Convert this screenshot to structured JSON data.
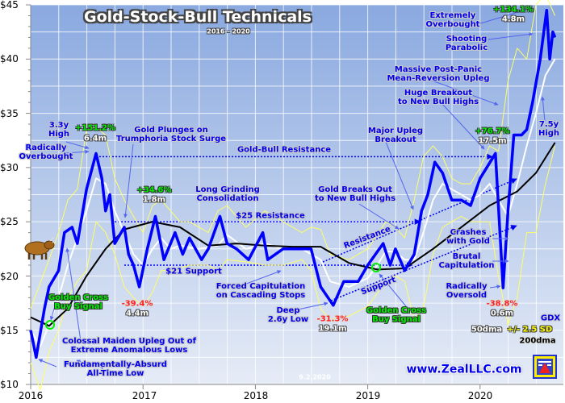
{
  "chart_data": {
    "type": "line",
    "title": "Gold-Stock-Bull Technicals",
    "subtitle": "2016 - 2020",
    "xlabel": "",
    "ylabel": "",
    "ylim": [
      10,
      45
    ],
    "xlim": [
      "2016-01-01",
      "2020-09-02"
    ],
    "y_ticks": [
      "$10",
      "$15",
      "$20",
      "$25",
      "$30",
      "$35",
      "$40",
      "$45"
    ],
    "x_ticks": [
      "2016",
      "2017",
      "2018",
      "2019",
      "2020"
    ],
    "grid": true,
    "legend": "bottom-right",
    "legend_entries": {
      "gdx": "GDX",
      "dma50": "50dma",
      "bands": "+/- 2.5 SD",
      "dma200": "200dma"
    },
    "colors": {
      "gdx": "#0000ff",
      "dma50": "#ffffff",
      "dma200": "#000000",
      "bands": "#ffff66",
      "resistance": "#0000ff",
      "golden_cross": "#00ee00"
    },
    "series": [
      {
        "name": "GDX",
        "points": [
          [
            "2016-01-01",
            15.0
          ],
          [
            "2016-01-19",
            12.5
          ],
          [
            "2016-02-15",
            17.0
          ],
          [
            "2016-03-01",
            19.0
          ],
          [
            "2016-04-01",
            20.5
          ],
          [
            "2016-04-20",
            24.0
          ],
          [
            "2016-05-15",
            24.5
          ],
          [
            "2016-06-01",
            23.0
          ],
          [
            "2016-07-01",
            28.0
          ],
          [
            "2016-08-01",
            31.3
          ],
          [
            "2016-08-20",
            29.0
          ],
          [
            "2016-09-01",
            26.0
          ],
          [
            "2016-09-15",
            27.5
          ],
          [
            "2016-10-01",
            23.0
          ],
          [
            "2016-11-01",
            24.5
          ],
          [
            "2016-11-15",
            22.0
          ],
          [
            "2016-12-01",
            21.0
          ],
          [
            "2016-12-20",
            19.0
          ],
          [
            "2017-01-15",
            22.5
          ],
          [
            "2017-02-10",
            25.5
          ],
          [
            "2017-03-10",
            21.5
          ],
          [
            "2017-04-15",
            24.0
          ],
          [
            "2017-05-10",
            22.0
          ],
          [
            "2017-06-01",
            23.5
          ],
          [
            "2017-07-10",
            21.5
          ],
          [
            "2017-08-01",
            22.5
          ],
          [
            "2017-09-08",
            25.5
          ],
          [
            "2017-10-01",
            23.0
          ],
          [
            "2017-11-01",
            22.5
          ],
          [
            "2017-12-10",
            21.5
          ],
          [
            "2018-01-25",
            24.0
          ],
          [
            "2018-02-10",
            21.5
          ],
          [
            "2018-04-01",
            22.5
          ],
          [
            "2018-06-01",
            22.5
          ],
          [
            "2018-07-01",
            22.5
          ],
          [
            "2018-08-01",
            19.0
          ],
          [
            "2018-09-11",
            17.3
          ],
          [
            "2018-10-15",
            19.5
          ],
          [
            "2018-12-01",
            19.5
          ],
          [
            "2019-01-01",
            21.0
          ],
          [
            "2019-02-20",
            23.0
          ],
          [
            "2019-03-15",
            21.0
          ],
          [
            "2019-04-01",
            22.5
          ],
          [
            "2019-05-01",
            20.5
          ],
          [
            "2019-06-01",
            22.0
          ],
          [
            "2019-06-25",
            26.0
          ],
          [
            "2019-07-15",
            27.5
          ],
          [
            "2019-08-07",
            30.5
          ],
          [
            "2019-09-01",
            29.5
          ],
          [
            "2019-10-01",
            27.0
          ],
          [
            "2019-11-01",
            27.0
          ],
          [
            "2019-12-01",
            26.5
          ],
          [
            "2020-01-01",
            29.0
          ],
          [
            "2020-02-20",
            31.3
          ],
          [
            "2020-03-16",
            18.9
          ],
          [
            "2020-04-01",
            26.0
          ],
          [
            "2020-04-20",
            33.0
          ],
          [
            "2020-05-15",
            33.0
          ],
          [
            "2020-06-01",
            33.5
          ],
          [
            "2020-06-20",
            36.0
          ],
          [
            "2020-07-15",
            40.0
          ],
          [
            "2020-08-05",
            44.5
          ],
          [
            "2020-08-15",
            40.0
          ],
          [
            "2020-08-25",
            42.5
          ],
          [
            "2020-09-01",
            42.0
          ]
        ]
      },
      {
        "name": "50dma",
        "points": [
          [
            "2016-01-01",
            15
          ],
          [
            "2016-02-01",
            13.5
          ],
          [
            "2016-03-01",
            15.5
          ],
          [
            "2016-04-01",
            18
          ],
          [
            "2016-05-01",
            21
          ],
          [
            "2016-06-01",
            23.5
          ],
          [
            "2016-07-01",
            26
          ],
          [
            "2016-08-01",
            29
          ],
          [
            "2016-09-01",
            28.5
          ],
          [
            "2016-10-01",
            26
          ],
          [
            "2016-11-01",
            24
          ],
          [
            "2016-12-01",
            22
          ],
          [
            "2017-01-01",
            21
          ],
          [
            "2017-02-01",
            22.5
          ],
          [
            "2017-03-01",
            23.5
          ],
          [
            "2017-04-01",
            22.5
          ],
          [
            "2017-05-01",
            22.8
          ],
          [
            "2017-07-01",
            22.5
          ],
          [
            "2017-09-01",
            22.8
          ],
          [
            "2017-10-01",
            23.8
          ],
          [
            "2017-12-01",
            22.5
          ],
          [
            "2018-02-01",
            23
          ],
          [
            "2018-04-01",
            22.5
          ],
          [
            "2018-06-01",
            22.5
          ],
          [
            "2018-08-01",
            21.5
          ],
          [
            "2018-09-01",
            19.5
          ],
          [
            "2018-11-01",
            19
          ],
          [
            "2019-01-01",
            19.8
          ],
          [
            "2019-02-01",
            21
          ],
          [
            "2019-03-01",
            22.3
          ],
          [
            "2019-04-01",
            22.2
          ],
          [
            "2019-05-01",
            21.5
          ],
          [
            "2019-06-01",
            21.5
          ],
          [
            "2019-07-01",
            24
          ],
          [
            "2019-08-01",
            27
          ],
          [
            "2019-09-01",
            28.5
          ],
          [
            "2019-10-01",
            28
          ],
          [
            "2019-11-01",
            27.5
          ],
          [
            "2019-12-01",
            27
          ],
          [
            "2020-01-01",
            27.5
          ],
          [
            "2020-02-01",
            28.5
          ],
          [
            "2020-03-01",
            27
          ],
          [
            "2020-04-01",
            25.5
          ],
          [
            "2020-05-01",
            28.5
          ],
          [
            "2020-06-01",
            32
          ],
          [
            "2020-07-01",
            35
          ],
          [
            "2020-08-01",
            38.5
          ],
          [
            "2020-09-01",
            40
          ]
        ]
      },
      {
        "name": "200dma",
        "points": [
          [
            "2016-01-01",
            16.2
          ],
          [
            "2016-03-01",
            15.4
          ],
          [
            "2016-05-01",
            17
          ],
          [
            "2016-07-01",
            20
          ],
          [
            "2016-09-01",
            22.5
          ],
          [
            "2016-11-01",
            24.3
          ],
          [
            "2017-02-01",
            25
          ],
          [
            "2017-05-01",
            24.5
          ],
          [
            "2017-08-01",
            22.8
          ],
          [
            "2017-11-01",
            23
          ],
          [
            "2018-02-01",
            22.8
          ],
          [
            "2018-05-01",
            22.7
          ],
          [
            "2018-08-01",
            22.7
          ],
          [
            "2018-11-01",
            21.2
          ],
          [
            "2019-02-01",
            20.6
          ],
          [
            "2019-05-01",
            20.7
          ],
          [
            "2019-08-01",
            22.5
          ],
          [
            "2019-11-01",
            24.5
          ],
          [
            "2020-02-01",
            26.5
          ],
          [
            "2020-05-01",
            27.8
          ],
          [
            "2020-07-01",
            29.5
          ],
          [
            "2020-09-01",
            32.3
          ]
        ]
      },
      {
        "name": "+2.5 SD",
        "points": [
          [
            "2016-01-01",
            17
          ],
          [
            "2016-03-01",
            21.5
          ],
          [
            "2016-04-01",
            24
          ],
          [
            "2016-05-01",
            27
          ],
          [
            "2016-06-01",
            28
          ],
          [
            "2016-07-01",
            33.5
          ],
          [
            "2016-08-01",
            33.7
          ],
          [
            "2016-09-01",
            33
          ],
          [
            "2016-10-01",
            29
          ],
          [
            "2016-11-01",
            27
          ],
          [
            "2016-12-01",
            25.5
          ],
          [
            "2017-01-01",
            24
          ],
          [
            "2017-02-01",
            26.5
          ],
          [
            "2017-03-01",
            27
          ],
          [
            "2017-04-01",
            26
          ],
          [
            "2017-05-01",
            25
          ],
          [
            "2017-06-01",
            25
          ],
          [
            "2017-08-01",
            24
          ],
          [
            "2017-09-01",
            26
          ],
          [
            "2017-10-01",
            26.5
          ],
          [
            "2017-12-01",
            24.5
          ],
          [
            "2018-02-01",
            26
          ],
          [
            "2018-04-01",
            25
          ],
          [
            "2018-06-01",
            24
          ],
          [
            "2018-07-01",
            24.5
          ],
          [
            "2018-08-01",
            24.3
          ],
          [
            "2018-09-01",
            22
          ],
          [
            "2018-11-01",
            21.5
          ],
          [
            "2019-01-01",
            22.5
          ],
          [
            "2019-03-01",
            25
          ],
          [
            "2019-04-01",
            24.5
          ],
          [
            "2019-05-01",
            23.5
          ],
          [
            "2019-06-01",
            27
          ],
          [
            "2019-07-01",
            31
          ],
          [
            "2019-08-01",
            32
          ],
          [
            "2019-09-01",
            31
          ],
          [
            "2019-10-01",
            29
          ],
          [
            "2019-11-01",
            28.5
          ],
          [
            "2019-12-01",
            28.5
          ],
          [
            "2020-01-01",
            30
          ],
          [
            "2020-02-01",
            32
          ],
          [
            "2020-03-01",
            31.5
          ],
          [
            "2020-04-01",
            38
          ],
          [
            "2020-05-01",
            41
          ],
          [
            "2020-06-01",
            40
          ],
          [
            "2020-07-01",
            45
          ],
          [
            "2020-08-01",
            46
          ],
          [
            "2020-09-01",
            44
          ]
        ]
      },
      {
        "name": "-2.5 SD",
        "points": [
          [
            "2016-01-01",
            12
          ],
          [
            "2016-02-01",
            9.5
          ],
          [
            "2016-03-01",
            13
          ],
          [
            "2016-04-01",
            15
          ],
          [
            "2016-05-01",
            18
          ],
          [
            "2016-06-01",
            19.5
          ],
          [
            "2016-07-01",
            20.5
          ],
          [
            "2016-08-01",
            25
          ],
          [
            "2016-09-01",
            24
          ],
          [
            "2016-10-01",
            22
          ],
          [
            "2016-11-01",
            19
          ],
          [
            "2016-12-01",
            18
          ],
          [
            "2017-01-01",
            17.2
          ],
          [
            "2017-02-01",
            18.5
          ],
          [
            "2017-03-01",
            20.5
          ],
          [
            "2017-04-01",
            20.5
          ],
          [
            "2017-06-01",
            21
          ],
          [
            "2017-08-01",
            21
          ],
          [
            "2017-09-01",
            20.5
          ],
          [
            "2017-10-01",
            21.5
          ],
          [
            "2017-12-01",
            21.3
          ],
          [
            "2018-02-01",
            21
          ],
          [
            "2018-04-01",
            21
          ],
          [
            "2018-06-01",
            21.5
          ],
          [
            "2018-07-01",
            20.5
          ],
          [
            "2018-08-01",
            17
          ],
          [
            "2018-09-01",
            16
          ],
          [
            "2018-11-01",
            16.3
          ],
          [
            "2019-01-01",
            17.2
          ],
          [
            "2019-03-01",
            19.5
          ],
          [
            "2019-04-01",
            20
          ],
          [
            "2019-05-01",
            19.5
          ],
          [
            "2019-06-01",
            16
          ],
          [
            "2019-07-01",
            17
          ],
          [
            "2019-08-01",
            22
          ],
          [
            "2019-09-01",
            24.5
          ],
          [
            "2019-10-01",
            25
          ],
          [
            "2019-11-01",
            25.5
          ],
          [
            "2019-12-01",
            25
          ],
          [
            "2020-01-01",
            25
          ],
          [
            "2020-02-01",
            25
          ],
          [
            "2020-03-01",
            20
          ],
          [
            "2020-04-01",
            15.5
          ],
          [
            "2020-05-01",
            18
          ],
          [
            "2020-06-01",
            24
          ],
          [
            "2020-07-01",
            24
          ],
          [
            "2020-08-01",
            28.5
          ],
          [
            "2020-09-01",
            32
          ]
        ]
      }
    ],
    "reference_lines": [
      {
        "label": "Gold-Bull Resistance",
        "value": 31
      },
      {
        "label": "$25 Resistance",
        "value": 25
      },
      {
        "label": "$21 Support",
        "value": 21
      }
    ],
    "annotations": {
      "high_3_3y": [
        "3.3y",
        "High"
      ],
      "gain_2016": [
        "+151.2%",
        "6.4m"
      ],
      "overbought_2016": [
        "Radically",
        "Overbought"
      ],
      "gold_plunges": [
        "Gold Plunges on",
        "Trumphoria Stock Surge"
      ],
      "gain_2017": [
        "+34.6%",
        "1.8m"
      ],
      "consolidation": [
        "Long Grinding",
        "Consolidation"
      ],
      "forced_cap": [
        "Forced Capitulation",
        "on Cascading Stops"
      ],
      "deep_low": [
        "Deep",
        "2.6y Low"
      ],
      "loss_2018": [
        "-31.3%",
        "19.1m"
      ],
      "loss_2016": [
        "-39.4%",
        "4.4m"
      ],
      "golden_cross_2019": [
        "Golden Cross",
        "Buy Signal"
      ],
      "golden_cross_2016": [
        "Golden Cross",
        "Buy Signal"
      ],
      "trend_support": "Support",
      "trend_resistance": "Resistance",
      "gold_breaks_out": [
        "Gold Breaks Out",
        "to New Bull Highs"
      ],
      "major_upleg": [
        "Major Upleg",
        "Breakout"
      ],
      "gain_2019": [
        "+76.7%",
        "17.5m"
      ],
      "huge_breakout": [
        "Huge Breakout",
        "to New Bull Highs"
      ],
      "post_panic": [
        "Massive Post-Panic",
        "Mean-Reversion Upleg"
      ],
      "shooting": [
        "Shooting",
        "Parabolic"
      ],
      "extremely_ob": [
        "Extremely",
        "Overbought"
      ],
      "gain_2020": [
        "+134.1%",
        "4.8m"
      ],
      "high_7_5y": [
        "7.5y",
        "High"
      ],
      "crashes": [
        "Crashes",
        "with Gold"
      ],
      "brutal": [
        "Brutal",
        "Capitulation"
      ],
      "oversold": [
        "Radically",
        "Oversold"
      ],
      "loss_2020": [
        "-38.8%",
        "0.6m"
      ],
      "colossal": [
        "Colossal Maiden Upleg Out of",
        "Extreme Anomalous Lows"
      ],
      "absurd_low": [
        "Fundamentally-Absurd",
        "All-Time Low"
      ]
    },
    "website": "www.ZealLLC.com",
    "date_stamp": "9.2.2020"
  }
}
